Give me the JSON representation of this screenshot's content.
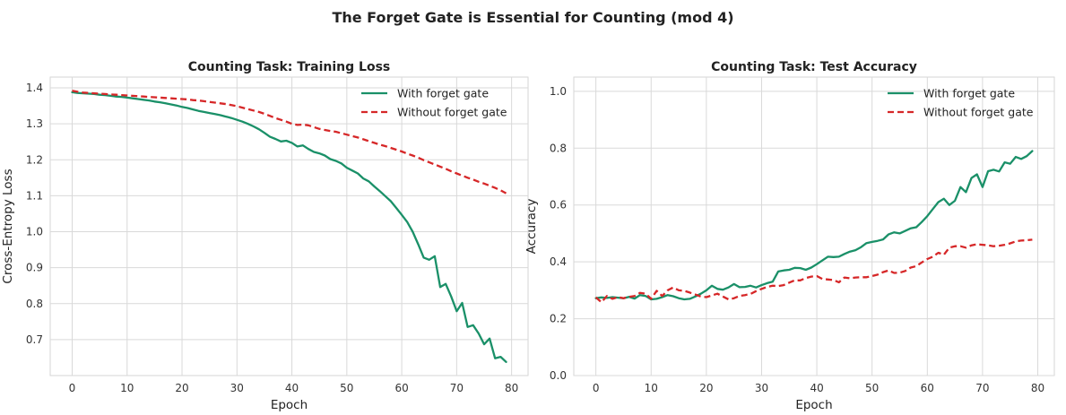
{
  "figure_title": "The Forget Gate is Essential for Counting (mod 4)",
  "chart_data": [
    {
      "type": "line",
      "title": "Counting Task: Training Loss",
      "xlabel": "Epoch",
      "ylabel": "Cross-Entropy Loss",
      "xlim": [
        -4,
        83
      ],
      "ylim": [
        0.6,
        1.43
      ],
      "xticks": [
        0,
        10,
        20,
        30,
        40,
        50,
        60,
        70,
        80
      ],
      "yticks": [
        0.7,
        0.8,
        0.9,
        1.0,
        1.1,
        1.2,
        1.3,
        1.4
      ],
      "ytick_decimals": 1,
      "grid": true,
      "legend": "top-right",
      "series": [
        {
          "name": "With forget gate",
          "color": "#1a9068",
          "style": "solid",
          "x": [
            0,
            1,
            2,
            3,
            4,
            5,
            6,
            7,
            8,
            9,
            10,
            11,
            12,
            13,
            14,
            15,
            16,
            17,
            18,
            19,
            20,
            21,
            22,
            23,
            24,
            25,
            26,
            27,
            28,
            29,
            30,
            31,
            32,
            33,
            34,
            35,
            36,
            37,
            38,
            39,
            40,
            41,
            42,
            43,
            44,
            45,
            46,
            47,
            48,
            49,
            50,
            51,
            52,
            53,
            54,
            55,
            56,
            57,
            58,
            59,
            60,
            61,
            62,
            63,
            64,
            65,
            66,
            67,
            68,
            69,
            70,
            71,
            72,
            73,
            74,
            75,
            76,
            77,
            78,
            79
          ],
          "values": [
            1.388,
            1.386,
            1.385,
            1.384,
            1.383,
            1.381,
            1.38,
            1.378,
            1.376,
            1.375,
            1.373,
            1.371,
            1.369,
            1.367,
            1.365,
            1.362,
            1.36,
            1.357,
            1.354,
            1.351,
            1.347,
            1.344,
            1.34,
            1.336,
            1.333,
            1.33,
            1.327,
            1.324,
            1.32,
            1.316,
            1.311,
            1.306,
            1.3,
            1.293,
            1.285,
            1.275,
            1.264,
            1.258,
            1.251,
            1.253,
            1.247,
            1.237,
            1.24,
            1.23,
            1.222,
            1.218,
            1.212,
            1.202,
            1.197,
            1.19,
            1.178,
            1.17,
            1.162,
            1.148,
            1.14,
            1.126,
            1.113,
            1.099,
            1.085,
            1.066,
            1.047,
            1.027,
            1.0,
            0.965,
            0.928,
            0.922,
            0.932,
            0.846,
            0.855,
            0.82,
            0.779,
            0.802,
            0.735,
            0.74,
            0.717,
            0.687,
            0.703,
            0.648,
            0.652,
            0.638
          ]
        },
        {
          "name": "Without forget gate",
          "color": "#d62728",
          "style": "dashed",
          "x": [
            0,
            1,
            2,
            3,
            4,
            5,
            6,
            7,
            8,
            9,
            10,
            11,
            12,
            13,
            14,
            15,
            16,
            17,
            18,
            19,
            20,
            21,
            22,
            23,
            24,
            25,
            26,
            27,
            28,
            29,
            30,
            31,
            32,
            33,
            34,
            35,
            36,
            37,
            38,
            39,
            40,
            41,
            42,
            43,
            44,
            45,
            46,
            47,
            48,
            49,
            50,
            51,
            52,
            53,
            54,
            55,
            56,
            57,
            58,
            59,
            60,
            61,
            62,
            63,
            64,
            65,
            66,
            67,
            68,
            69,
            70,
            71,
            72,
            73,
            74,
            75,
            76,
            77,
            78,
            79
          ],
          "values": [
            1.392,
            1.389,
            1.387,
            1.386,
            1.385,
            1.384,
            1.383,
            1.382,
            1.381,
            1.38,
            1.379,
            1.378,
            1.377,
            1.376,
            1.375,
            1.374,
            1.373,
            1.372,
            1.371,
            1.37,
            1.369,
            1.368,
            1.366,
            1.365,
            1.363,
            1.361,
            1.359,
            1.357,
            1.355,
            1.352,
            1.349,
            1.345,
            1.341,
            1.337,
            1.333,
            1.328,
            1.322,
            1.316,
            1.311,
            1.306,
            1.3,
            1.297,
            1.298,
            1.296,
            1.291,
            1.286,
            1.283,
            1.28,
            1.278,
            1.274,
            1.27,
            1.266,
            1.262,
            1.257,
            1.252,
            1.247,
            1.242,
            1.238,
            1.233,
            1.228,
            1.223,
            1.217,
            1.212,
            1.206,
            1.199,
            1.193,
            1.187,
            1.181,
            1.175,
            1.168,
            1.162,
            1.156,
            1.15,
            1.145,
            1.139,
            1.134,
            1.128,
            1.122,
            1.115,
            1.107
          ]
        }
      ]
    },
    {
      "type": "line",
      "title": "Counting Task: Test Accuracy",
      "xlabel": "Epoch",
      "ylabel": "Accuracy",
      "xlim": [
        -4,
        83
      ],
      "ylim": [
        0.0,
        1.05
      ],
      "xticks": [
        0,
        10,
        20,
        30,
        40,
        50,
        60,
        70,
        80
      ],
      "yticks": [
        0.0,
        0.2,
        0.4,
        0.6,
        0.8,
        1.0
      ],
      "ytick_decimals": 1,
      "grid": true,
      "legend": "top-right",
      "series": [
        {
          "name": "With forget gate",
          "color": "#1a9068",
          "style": "solid",
          "x": [
            0,
            1,
            2,
            3,
            4,
            5,
            6,
            7,
            8,
            9,
            10,
            11,
            12,
            13,
            14,
            15,
            16,
            17,
            18,
            19,
            20,
            21,
            22,
            23,
            24,
            25,
            26,
            27,
            28,
            29,
            30,
            31,
            32,
            33,
            34,
            35,
            36,
            37,
            38,
            39,
            40,
            41,
            42,
            43,
            44,
            45,
            46,
            47,
            48,
            49,
            50,
            51,
            52,
            53,
            54,
            55,
            56,
            57,
            58,
            59,
            60,
            61,
            62,
            63,
            64,
            65,
            66,
            67,
            68,
            69,
            70,
            71,
            72,
            73,
            74,
            75,
            76,
            77,
            78,
            79
          ],
          "values": [
            0.272,
            0.275,
            0.273,
            0.276,
            0.274,
            0.272,
            0.277,
            0.271,
            0.283,
            0.28,
            0.268,
            0.27,
            0.276,
            0.283,
            0.279,
            0.272,
            0.268,
            0.27,
            0.278,
            0.288,
            0.3,
            0.316,
            0.305,
            0.302,
            0.31,
            0.322,
            0.311,
            0.312,
            0.316,
            0.31,
            0.318,
            0.325,
            0.33,
            0.366,
            0.37,
            0.372,
            0.379,
            0.378,
            0.372,
            0.38,
            0.392,
            0.405,
            0.418,
            0.417,
            0.418,
            0.428,
            0.436,
            0.441,
            0.452,
            0.466,
            0.47,
            0.474,
            0.479,
            0.497,
            0.504,
            0.5,
            0.509,
            0.518,
            0.522,
            0.54,
            0.561,
            0.586,
            0.61,
            0.622,
            0.6,
            0.615,
            0.663,
            0.645,
            0.695,
            0.708,
            0.663,
            0.719,
            0.724,
            0.718,
            0.75,
            0.745,
            0.769,
            0.762,
            0.772,
            0.79
          ]
        },
        {
          "name": "Without forget gate",
          "color": "#d62728",
          "style": "dashed",
          "x": [
            0,
            1,
            2,
            3,
            4,
            5,
            6,
            7,
            8,
            9,
            10,
            11,
            12,
            13,
            14,
            15,
            16,
            17,
            18,
            19,
            20,
            21,
            22,
            23,
            24,
            25,
            26,
            27,
            28,
            29,
            30,
            31,
            32,
            33,
            34,
            35,
            36,
            37,
            38,
            39,
            40,
            41,
            42,
            43,
            44,
            45,
            46,
            47,
            48,
            49,
            50,
            51,
            52,
            53,
            54,
            55,
            56,
            57,
            58,
            59,
            60,
            61,
            62,
            63,
            64,
            65,
            66,
            67,
            68,
            69,
            70,
            71,
            72,
            73,
            74,
            75,
            76,
            77,
            78,
            79
          ],
          "values": [
            0.275,
            0.258,
            0.28,
            0.27,
            0.276,
            0.272,
            0.277,
            0.28,
            0.291,
            0.288,
            0.27,
            0.298,
            0.28,
            0.3,
            0.31,
            0.3,
            0.298,
            0.292,
            0.285,
            0.278,
            0.276,
            0.282,
            0.288,
            0.278,
            0.268,
            0.272,
            0.28,
            0.283,
            0.287,
            0.297,
            0.305,
            0.312,
            0.316,
            0.315,
            0.318,
            0.327,
            0.335,
            0.335,
            0.343,
            0.348,
            0.35,
            0.34,
            0.338,
            0.336,
            0.328,
            0.345,
            0.342,
            0.345,
            0.346,
            0.346,
            0.35,
            0.355,
            0.364,
            0.37,
            0.361,
            0.362,
            0.368,
            0.38,
            0.385,
            0.398,
            0.41,
            0.418,
            0.432,
            0.425,
            0.45,
            0.455,
            0.455,
            0.45,
            0.458,
            0.462,
            0.46,
            0.458,
            0.455,
            0.457,
            0.46,
            0.465,
            0.472,
            0.475,
            0.476,
            0.478
          ]
        }
      ]
    }
  ]
}
